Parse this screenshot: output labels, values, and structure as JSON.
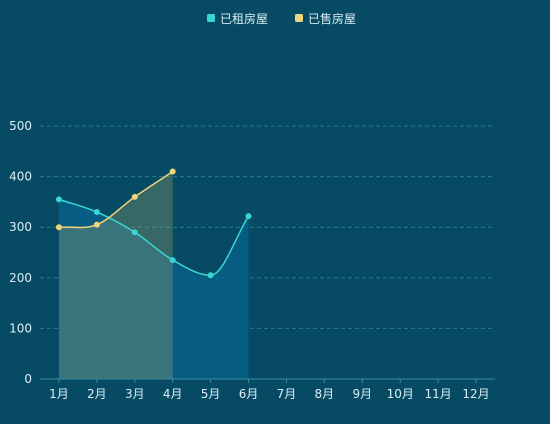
{
  "colors": {
    "background": "#064a63",
    "rented": "#3ad6d6",
    "sold": "#f2d47e",
    "axis_text": "#d9eef6",
    "grid": "#2a7a91",
    "axis_line": "#3a8aa0"
  },
  "chart_data": {
    "type": "line",
    "categories": [
      "1月",
      "2月",
      "3月",
      "4月",
      "5月",
      "6月",
      "7月",
      "8月",
      "9月",
      "10月",
      "11月",
      "12月"
    ],
    "series": [
      {
        "name": "已租房屋",
        "color": "#3ad6d6",
        "values": [
          355,
          330,
          290,
          235,
          205,
          322,
          null,
          null,
          null,
          null,
          null,
          null
        ]
      },
      {
        "name": "已售房屋",
        "color": "#f2d47e",
        "values": [
          300,
          305,
          360,
          410,
          null,
          null,
          null,
          null,
          null,
          null,
          null,
          null
        ]
      }
    ],
    "y_ticks": [
      0,
      100,
      200,
      300,
      400,
      500
    ],
    "ylim": [
      0,
      500
    ],
    "grid": true,
    "legend_position": "top-center",
    "smooth": true,
    "area_fill": true
  }
}
